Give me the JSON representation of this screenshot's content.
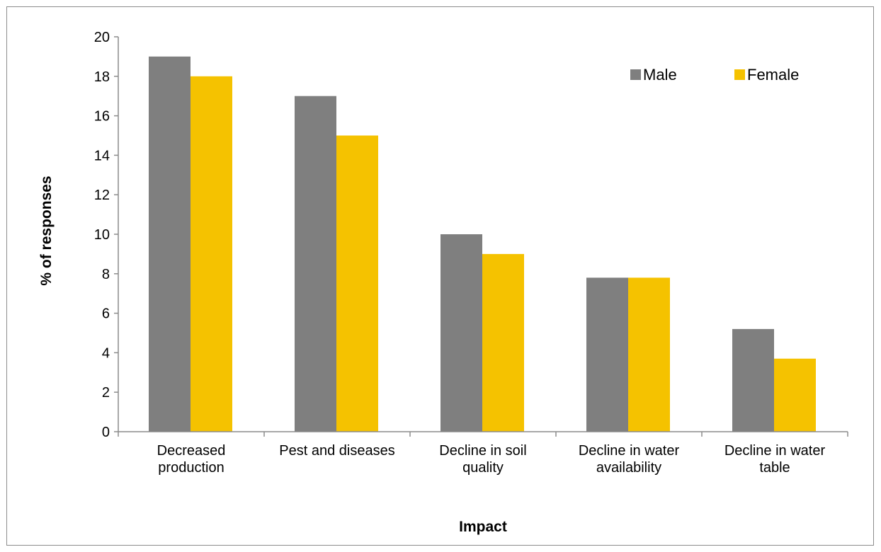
{
  "chart_data": {
    "type": "bar",
    "title": "",
    "xlabel": "Impact",
    "ylabel": "% of responses",
    "ylim": [
      0,
      20
    ],
    "yticks": [
      0,
      2,
      4,
      6,
      8,
      10,
      12,
      14,
      16,
      18,
      20
    ],
    "categories": [
      [
        "Decreased",
        "production"
      ],
      [
        "Pest and diseases"
      ],
      [
        "Decline in soil",
        "quality"
      ],
      [
        "Decline in water",
        "availability"
      ],
      [
        "Decline in water",
        "table"
      ]
    ],
    "series": [
      {
        "name": "Male",
        "color": "#7f7f7f",
        "values": [
          19,
          17,
          10,
          7.8,
          5.2
        ]
      },
      {
        "name": "Female",
        "color": "#f5c200",
        "values": [
          18,
          15,
          9,
          7.8,
          3.7
        ]
      }
    ],
    "legend": {
      "position": "top-right"
    },
    "grid": false
  }
}
